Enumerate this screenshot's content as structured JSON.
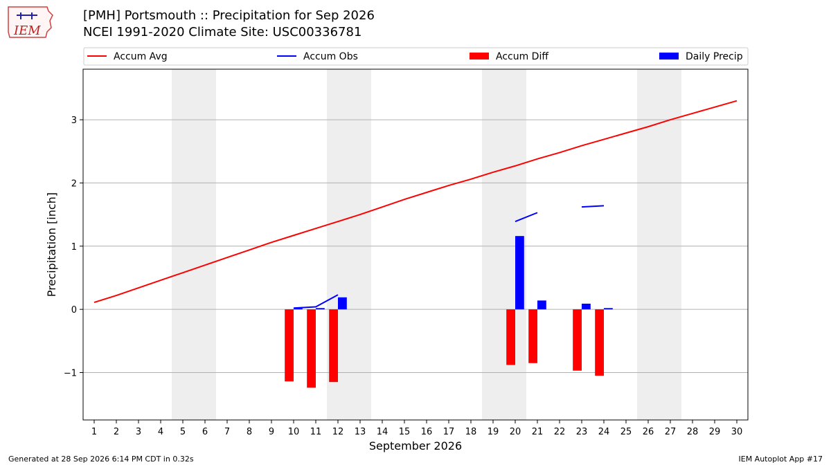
{
  "header": {
    "title_line1": "[PMH] Portsmouth :: Precipitation for Sep 2026",
    "title_line2": "NCEI 1991-2020 Climate Site: USC00336781"
  },
  "logo": {
    "text": "IEM",
    "icon": "iem-iowa-logo"
  },
  "footer": {
    "left": "Generated at 28 Sep 2026 6:14 PM CDT in 0.32s",
    "right": "IEM Autoplot App #17"
  },
  "colors": {
    "accum_avg": "#ff0000",
    "accum_obs": "#0000ff",
    "accum_diff": "#ff0000",
    "daily_precip": "#0000ff",
    "weekend_shade": "#eeeeee",
    "grid": "#b0b0b0"
  },
  "chart_data": {
    "type": "bar",
    "xlabel": "September 2026",
    "ylabel": "Precipitation [inch]",
    "xlim": [
      0.5,
      30.5
    ],
    "ylim": [
      -1.75,
      3.8
    ],
    "yticks": [
      -1,
      0,
      1,
      2,
      3
    ],
    "ytick_labels": [
      "−1",
      "0",
      "1",
      "2",
      "3"
    ],
    "days": [
      1,
      2,
      3,
      4,
      5,
      6,
      7,
      8,
      9,
      10,
      11,
      12,
      13,
      14,
      15,
      16,
      17,
      18,
      19,
      20,
      21,
      22,
      23,
      24,
      25,
      26,
      27,
      28,
      29,
      30
    ],
    "weekend_days": [
      5,
      6,
      12,
      13,
      19,
      20,
      26,
      27
    ],
    "grid": true,
    "legend_position": "top",
    "legend": [
      {
        "label": "Accum Avg",
        "kind": "line",
        "color": "#ff0000"
      },
      {
        "label": "Accum Obs",
        "kind": "line",
        "color": "#0000ff"
      },
      {
        "label": "Accum Diff",
        "kind": "bar",
        "color": "#ff0000"
      },
      {
        "label": "Daily Precip",
        "kind": "bar",
        "color": "#0000ff"
      }
    ],
    "accum_avg": [
      0.11,
      0.22,
      0.34,
      0.46,
      0.58,
      0.7,
      0.82,
      0.94,
      1.06,
      1.17,
      1.28,
      1.39,
      1.5,
      1.62,
      1.74,
      1.85,
      1.96,
      2.06,
      2.17,
      2.27,
      2.38,
      2.48,
      2.59,
      2.69,
      2.79,
      2.89,
      3.0,
      3.1,
      3.2,
      3.3
    ],
    "accum_obs_segments": [
      [
        {
          "day": 10,
          "value": 0.02
        },
        {
          "day": 11,
          "value": 0.04
        },
        {
          "day": 12,
          "value": 0.23
        }
      ],
      [
        {
          "day": 20,
          "value": 1.39
        },
        {
          "day": 21,
          "value": 1.53
        }
      ],
      [
        {
          "day": 23,
          "value": 1.62
        },
        {
          "day": 24,
          "value": 1.64
        }
      ]
    ],
    "accum_diff": [
      {
        "day": 10,
        "value": -1.14
      },
      {
        "day": 11,
        "value": -1.24
      },
      {
        "day": 12,
        "value": -1.15
      },
      {
        "day": 20,
        "value": -0.88
      },
      {
        "day": 21,
        "value": -0.85
      },
      {
        "day": 23,
        "value": -0.97
      },
      {
        "day": 24,
        "value": -1.05
      }
    ],
    "daily_precip": [
      {
        "day": 10,
        "value": 0.02
      },
      {
        "day": 11,
        "value": 0.02
      },
      {
        "day": 12,
        "value": 0.19
      },
      {
        "day": 20,
        "value": 1.16
      },
      {
        "day": 21,
        "value": 0.14
      },
      {
        "day": 23,
        "value": 0.09
      },
      {
        "day": 24,
        "value": 0.02
      }
    ]
  }
}
